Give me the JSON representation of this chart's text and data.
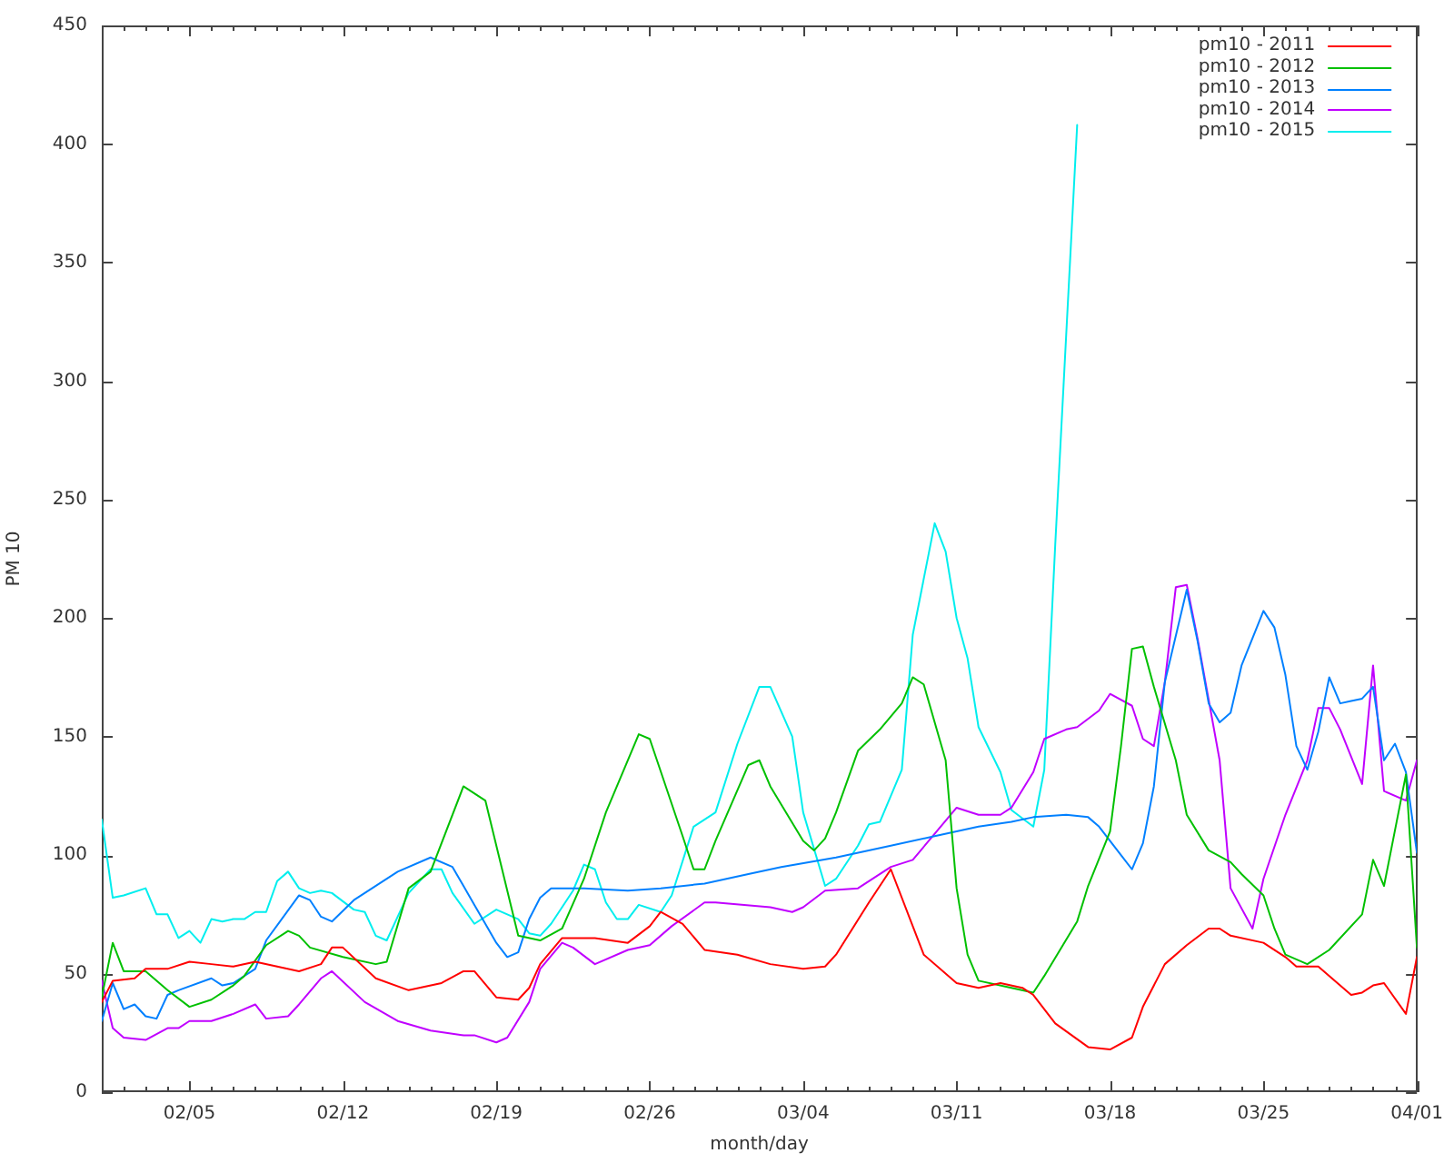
{
  "chart_data": {
    "type": "line",
    "xlabel": "month/day",
    "ylabel": "PM 10",
    "legend": "top right",
    "xlim": [
      "--02-01",
      "--04-01"
    ],
    "xticks": [
      {
        "value": "--02-02",
        "label": null
      },
      {
        "value": "--02-03",
        "label": null
      },
      {
        "value": "--02-04",
        "label": null
      },
      {
        "value": "--02-05",
        "label": "02/05"
      },
      {
        "value": "--02-06",
        "label": null
      },
      {
        "value": "--02-07",
        "label": null
      },
      {
        "value": "--02-08",
        "label": null
      },
      {
        "value": "--02-09",
        "label": null
      },
      {
        "value": "--02-10",
        "label": null
      },
      {
        "value": "--02-11",
        "label": null
      },
      {
        "value": "--02-12",
        "label": "02/12"
      },
      {
        "value": "--02-13",
        "label": null
      },
      {
        "value": "--02-14",
        "label": null
      },
      {
        "value": "--02-15",
        "label": null
      },
      {
        "value": "--02-16",
        "label": null
      },
      {
        "value": "--02-17",
        "label": null
      },
      {
        "value": "--02-18",
        "label": null
      },
      {
        "value": "--02-19",
        "label": "02/19"
      },
      {
        "value": "--02-20",
        "label": null
      },
      {
        "value": "--02-21",
        "label": null
      },
      {
        "value": "--02-22",
        "label": null
      },
      {
        "value": "--02-23",
        "label": null
      },
      {
        "value": "--02-24",
        "label": null
      },
      {
        "value": "--02-25",
        "label": null
      },
      {
        "value": "--02-26",
        "label": "02/26"
      },
      {
        "value": "--02-27",
        "label": null
      },
      {
        "value": "--02-28",
        "label": null
      },
      {
        "value": "--02-29",
        "label": null
      },
      {
        "value": "--03-01",
        "label": null
      },
      {
        "value": "--03-02",
        "label": null
      },
      {
        "value": "--03-03",
        "label": null
      },
      {
        "value": "--03-04",
        "label": "03/04"
      },
      {
        "value": "--03-05",
        "label": null
      },
      {
        "value": "--03-06",
        "label": null
      },
      {
        "value": "--03-07",
        "label": null
      },
      {
        "value": "--03-08",
        "label": null
      },
      {
        "value": "--03-09",
        "label": null
      },
      {
        "value": "--03-10",
        "label": null
      },
      {
        "value": "--03-11",
        "label": "03/11"
      },
      {
        "value": "--03-12",
        "label": null
      },
      {
        "value": "--03-13",
        "label": null
      },
      {
        "value": "--03-14",
        "label": null
      },
      {
        "value": "--03-15",
        "label": null
      },
      {
        "value": "--03-16",
        "label": null
      },
      {
        "value": "--03-17",
        "label": null
      },
      {
        "value": "--03-18",
        "label": "03/18"
      },
      {
        "value": "--03-19",
        "label": null
      },
      {
        "value": "--03-20",
        "label": null
      },
      {
        "value": "--03-21",
        "label": null
      },
      {
        "value": "--03-22",
        "label": null
      },
      {
        "value": "--03-23",
        "label": null
      },
      {
        "value": "--03-24",
        "label": null
      },
      {
        "value": "--03-25",
        "label": "03/25"
      },
      {
        "value": "--03-26",
        "label": null
      },
      {
        "value": "--03-27",
        "label": null
      },
      {
        "value": "--03-28",
        "label": null
      },
      {
        "value": "--03-29",
        "label": null
      },
      {
        "value": "--03-30",
        "label": null
      },
      {
        "value": "--03-31",
        "label": null
      },
      {
        "value": "--04-01",
        "label": "04/01"
      }
    ],
    "ylim": [
      0,
      450
    ],
    "yticks": [
      0,
      50,
      100,
      150,
      200,
      250,
      300,
      350,
      400,
      450
    ],
    "series": [
      {
        "name": "pm10 - 2011",
        "color": "#ff0000",
        "x": [
          "--02-01",
          "--02-01T12:00",
          "--02-02T12:00",
          "--02-03",
          "--02-04",
          "--02-05",
          "--02-06",
          "--02-07",
          "--02-08",
          "--02-09",
          "--02-10",
          "--02-11",
          "--02-11T12:00",
          "--02-12",
          "--02-13T12:00",
          "--02-15",
          "--02-16T12:00",
          "--02-17T12:00",
          "--02-18",
          "--02-19",
          "--02-20",
          "--02-20T12:00",
          "--02-21",
          "--02-22",
          "--02-23T12:00",
          "--02-25",
          "--02-26",
          "--02-26T12:00",
          "--02-27T12:00",
          "--02-28T12:00",
          "--03-01",
          "--03-02T12:00",
          "--03-04",
          "--03-05",
          "--03-05T12:00",
          "--03-07",
          "--03-08",
          "--03-09T12:00",
          "--03-11",
          "--03-12",
          "--03-13",
          "--03-14",
          "--03-14T12:00",
          "--03-15T12:00",
          "--03-17",
          "--03-18",
          "--03-19",
          "--03-19T12:00",
          "--03-20T12:00",
          "--03-21T12:00",
          "--03-22T12:00",
          "--03-23",
          "--03-23T12:00",
          "--03-25",
          "--03-26",
          "--03-26T12:00",
          "--03-27T12:00",
          "--03-29",
          "--03-29T12:00",
          "--03-30",
          "--03-30T12:00",
          "--03-31T12:00",
          "--04-01"
        ],
        "values": [
          38,
          47,
          48,
          52,
          52,
          55,
          54,
          53,
          55,
          53,
          51,
          54,
          61,
          61,
          48,
          43,
          46,
          51,
          51,
          40,
          39,
          44,
          54,
          65,
          65,
          63,
          70,
          76,
          71,
          60,
          58,
          54,
          52,
          53,
          58,
          80,
          94,
          58,
          46,
          44,
          46,
          44,
          41,
          29,
          19,
          18,
          23,
          36,
          54,
          62,
          69,
          69,
          66,
          63,
          57,
          53,
          53,
          41,
          42,
          45,
          46,
          33,
          57
        ]
      },
      {
        "name": "pm10 - 2012",
        "color": "#00c000",
        "x": [
          "--02-01",
          "--02-01T12:00",
          "--02-02",
          "--02-03",
          "--02-04",
          "--02-05",
          "--02-06",
          "--02-07",
          "--02-07T12:00",
          "--02-08T12:00",
          "--02-09T12:00",
          "--02-10",
          "--02-10T12:00",
          "--02-12",
          "--02-13T12:00",
          "--02-14",
          "--02-15",
          "--02-16",
          "--02-17T12:00",
          "--02-18T12:00",
          "--02-20",
          "--02-21",
          "--02-22",
          "--02-23",
          "--02-24",
          "--02-25T12:00",
          "--02-26",
          "--02-27T12:00",
          "--02-28",
          "--02-28T12:00",
          "--02-29",
          "--03-01T12:00",
          "--03-02",
          "--03-02T12:00",
          "--03-04",
          "--03-04T12:00",
          "--03-05",
          "--03-05T12:00",
          "--03-06T12:00",
          "--03-07T12:00",
          "--03-08T12:00",
          "--03-09",
          "--03-09T12:00",
          "--03-10T12:00",
          "--03-11",
          "--03-11T12:00",
          "--03-12",
          "--03-13T12:00",
          "--03-14T12:00",
          "--03-15",
          "--03-16T12:00",
          "--03-17",
          "--03-18",
          "--03-18T12:00",
          "--03-19",
          "--03-19T12:00",
          "--03-20",
          "--03-21",
          "--03-21T12:00",
          "--03-22T12:00",
          "--03-23T12:00",
          "--03-24",
          "--03-25",
          "--03-25T12:00",
          "--03-26",
          "--03-27",
          "--03-28",
          "--03-29T12:00",
          "--03-30",
          "--03-30T12:00",
          "--03-31T12:00",
          "--04-01"
        ],
        "values": [
          40,
          63,
          51,
          51,
          43,
          36,
          39,
          45,
          49,
          62,
          68,
          66,
          61,
          57,
          54,
          55,
          86,
          93,
          129,
          123,
          66,
          64,
          69,
          90,
          118,
          151,
          149,
          108,
          94,
          94,
          106,
          138,
          140,
          129,
          106,
          102,
          107,
          118,
          144,
          153,
          164,
          175,
          172,
          140,
          86,
          58,
          47,
          44,
          42,
          49,
          72,
          87,
          110,
          146,
          187,
          188,
          171,
          140,
          117,
          102,
          97,
          92,
          83,
          69,
          58,
          54,
          60,
          75,
          98,
          87,
          134,
          61
        ]
      },
      {
        "name": "pm10 - 2013",
        "color": "#0080ff",
        "x": [
          "--02-01",
          "--02-01T12:00",
          "--02-02",
          "--02-02T12:00",
          "--02-03",
          "--02-03T12:00",
          "--02-04",
          "--02-04T12:00",
          "--02-06",
          "--02-06T12:00",
          "--02-07",
          "--02-08",
          "--02-08T12:00",
          "--02-10",
          "--02-10T12:00",
          "--02-11",
          "--02-11T12:00",
          "--02-12T12:00",
          "--02-14T12:00",
          "--02-16",
          "--02-17",
          "--02-18",
          "--02-19",
          "--02-19T12:00",
          "--02-20",
          "--02-20T12:00",
          "--02-21",
          "--02-21T12:00",
          "--02-23",
          "--02-25",
          "--02-26T12:00",
          "--02-28T12:00",
          "--03-01T12:00",
          "--03-03",
          "--03-05T12:00",
          "--03-08",
          "--03-10",
          "--03-12",
          "--03-13T12:00",
          "--03-14T12:00",
          "--03-16",
          "--03-17",
          "--03-17T12:00",
          "--03-18T12:00",
          "--03-19",
          "--03-19T12:00",
          "--03-20",
          "--03-20T12:00",
          "--03-21T12:00",
          "--03-22",
          "--03-22T12:00",
          "--03-23",
          "--03-23T12:00",
          "--03-24",
          "--03-25",
          "--03-25T12:00",
          "--03-26",
          "--03-26T12:00",
          "--03-27",
          "--03-27T12:00",
          "--03-28",
          "--03-28T12:00",
          "--03-29",
          "--03-29T12:00",
          "--03-30",
          "--03-30T12:00",
          "--03-31",
          "--03-31T12:00",
          "--04-01"
        ],
        "values": [
          30,
          46,
          35,
          37,
          32,
          31,
          41,
          43,
          48,
          45,
          46,
          52,
          64,
          83,
          81,
          74,
          72,
          81,
          93,
          99,
          95,
          79,
          63,
          57,
          59,
          73,
          82,
          86,
          86,
          85,
          86,
          88,
          92,
          95,
          99,
          104,
          108,
          112,
          114,
          116,
          117,
          116,
          112,
          100,
          94,
          105,
          129,
          173,
          212,
          190,
          164,
          156,
          160,
          180,
          203,
          196,
          176,
          146,
          136,
          152,
          175,
          164,
          165,
          166,
          171,
          140,
          147,
          135,
          101
        ]
      },
      {
        "name": "pm10 - 2014",
        "color": "#c000ff",
        "x": [
          "--02-01",
          "--02-01T12:00",
          "--02-02",
          "--02-03",
          "--02-04",
          "--02-04T12:00",
          "--02-05",
          "--02-06",
          "--02-07",
          "--02-08",
          "--02-08T12:00",
          "--02-09T12:00",
          "--02-10",
          "--02-11",
          "--02-11T12:00",
          "--02-13",
          "--02-14T12:00",
          "--02-16",
          "--02-17T12:00",
          "--02-18",
          "--02-19",
          "--02-19T12:00",
          "--02-20T12:00",
          "--02-21",
          "--02-22",
          "--02-22T12:00",
          "--02-23T12:00",
          "--02-25",
          "--02-26",
          "--02-27",
          "--02-28T12:00",
          "--02-29",
          "--03-02T12:00",
          "--03-03T12:00",
          "--03-04",
          "--03-05",
          "--03-06T12:00",
          "--03-08",
          "--03-09",
          "--03-10",
          "--03-11",
          "--03-12",
          "--03-13",
          "--03-13T12:00",
          "--03-14T12:00",
          "--03-15",
          "--03-16",
          "--03-16T12:00",
          "--03-17T12:00",
          "--03-18",
          "--03-19",
          "--03-19T12:00",
          "--03-20",
          "--03-20T12:00",
          "--03-21",
          "--03-21T12:00",
          "--03-22",
          "--03-23",
          "--03-23T12:00",
          "--03-24T12:00",
          "--03-25",
          "--03-26",
          "--03-27",
          "--03-27T12:00",
          "--03-28",
          "--03-28T12:00",
          "--03-29T12:00",
          "--03-30",
          "--03-30T12:00",
          "--03-31T12:00",
          "--04-01"
        ],
        "values": [
          47,
          27,
          23,
          22,
          27,
          27,
          30,
          30,
          33,
          37,
          31,
          32,
          37,
          48,
          51,
          38,
          30,
          26,
          24,
          24,
          21,
          23,
          38,
          52,
          63,
          61,
          54,
          60,
          62,
          70,
          80,
          80,
          78,
          76,
          78,
          85,
          86,
          95,
          98,
          109,
          120,
          117,
          117,
          120,
          135,
          149,
          153,
          154,
          161,
          168,
          163,
          149,
          146,
          173,
          213,
          214,
          191,
          140,
          86,
          69,
          90,
          117,
          140,
          162,
          162,
          153,
          130,
          180,
          127,
          123,
          140
        ]
      },
      {
        "name": "pm10 - 2015",
        "color": "#00eeee",
        "x": [
          "--02-01",
          "--02-01T12:00",
          "--02-02",
          "--02-03",
          "--02-03T12:00",
          "--02-04",
          "--02-04T12:00",
          "--02-05",
          "--02-05T12:00",
          "--02-06",
          "--02-06T12:00",
          "--02-07",
          "--02-07T12:00",
          "--02-08",
          "--02-08T12:00",
          "--02-09",
          "--02-09T12:00",
          "--02-10",
          "--02-10T12:00",
          "--02-11",
          "--02-11T12:00",
          "--02-12T12:00",
          "--02-13",
          "--02-13T12:00",
          "--02-14",
          "--02-15",
          "--02-16",
          "--02-16T12:00",
          "--02-17",
          "--02-18",
          "--02-19",
          "--02-20",
          "--02-20T12:00",
          "--02-21",
          "--02-21T12:00",
          "--02-22T12:00",
          "--02-23",
          "--02-23T12:00",
          "--02-24",
          "--02-24T12:00",
          "--02-25",
          "--02-25T12:00",
          "--02-26T12:00",
          "--02-27",
          "--02-28",
          "--02-29",
          "--03-01",
          "--03-02",
          "--03-02T12:00",
          "--03-03T12:00",
          "--03-04",
          "--03-05",
          "--03-05T12:00",
          "--03-06T12:00",
          "--03-07",
          "--03-07T12:00",
          "--03-08T12:00",
          "--03-09",
          "--03-10",
          "--03-10T12:00",
          "--03-11",
          "--03-11T12:00",
          "--03-12",
          "--03-13",
          "--03-13T12:00",
          "--03-14T12:00",
          "--03-15",
          "--03-15T12:00",
          "--03-16T12:00"
        ],
        "values": [
          115,
          82,
          83,
          86,
          75,
          75,
          65,
          68,
          63,
          73,
          72,
          73,
          73,
          76,
          76,
          89,
          93,
          86,
          84,
          85,
          84,
          77,
          76,
          66,
          64,
          84,
          94,
          94,
          84,
          71,
          77,
          73,
          67,
          66,
          71,
          85,
          96,
          94,
          80,
          73,
          73,
          79,
          76,
          83,
          112,
          118,
          147,
          171,
          171,
          150,
          118,
          87,
          90,
          104,
          113,
          114,
          136,
          193,
          240,
          228,
          200,
          183,
          154,
          135,
          119,
          112,
          136,
          231,
          408
        ]
      }
    ]
  }
}
